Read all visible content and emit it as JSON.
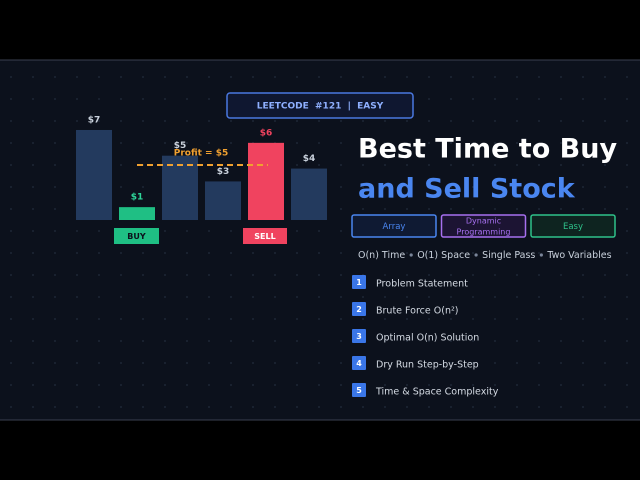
{
  "badge": "LEETCODE  #121  |  EASY",
  "chart": {
    "bars": [
      {
        "label": "$7",
        "value": 7,
        "color": "#233a5e",
        "label_color": "#c9d1dc"
      },
      {
        "label": "$1",
        "value": 1,
        "color": "#1fbf84",
        "label_color": "#2ed69a"
      },
      {
        "label": "$5",
        "value": 5,
        "color": "#233a5e",
        "label_color": "#c9d1dc"
      },
      {
        "label": "$3",
        "value": 3,
        "color": "#233a5e",
        "label_color": "#c9d1dc"
      },
      {
        "label": "$6",
        "value": 6,
        "color": "#f0435f",
        "label_color": "#f0435f"
      },
      {
        "label": "$4",
        "value": 4,
        "color": "#233a5e",
        "label_color": "#c9d1dc"
      }
    ],
    "buy_label": "BUY",
    "sell_label": "SELL",
    "profit_label": "Profit = $5"
  },
  "title": {
    "line1": "Best Time to Buy",
    "line2": "and Sell Stock"
  },
  "tags": [
    "Array",
    "Dynamic Programming",
    "Easy"
  ],
  "facts": [
    "O(n) Time",
    "O(1) Space",
    "Single Pass",
    "Two Variables"
  ],
  "outline": [
    {
      "number": 1,
      "text": "Problem Statement"
    },
    {
      "number": 2,
      "text": "Brute Force O(n²)"
    },
    {
      "number": 3,
      "text": "Optimal O(n) Solution"
    },
    {
      "number": 4,
      "text": "Dry Run Step-by-Step"
    },
    {
      "number": 5,
      "text": "Time & Space Complexity"
    }
  ]
}
